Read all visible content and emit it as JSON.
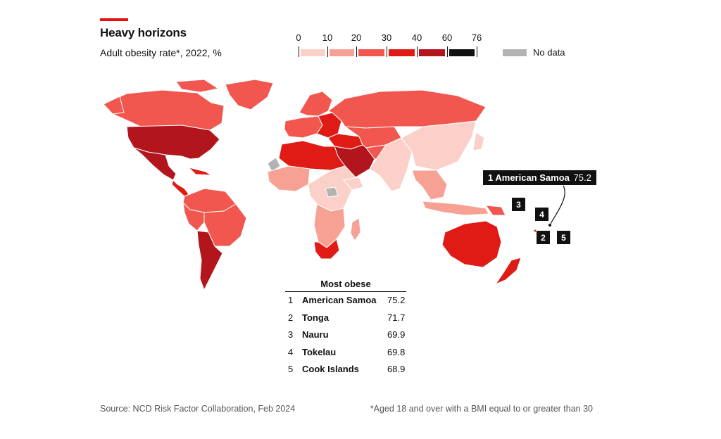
{
  "header": {
    "title": "Heavy horizons",
    "subtitle": "Adult obesity rate*, 2022, %"
  },
  "legend": {
    "ticks": [
      "0",
      "10",
      "20",
      "30",
      "40",
      "60",
      "76"
    ],
    "colors": [
      "#fbd0c8",
      "#f7a195",
      "#f1564f",
      "#e01b15",
      "#b2151c",
      "#111111"
    ],
    "no_data_label": "No data",
    "no_data_color": "#b3b3b3"
  },
  "map": {
    "ocean": "#ffffff",
    "border_color": "#ffffff"
  },
  "callout": {
    "rank": "1",
    "name": "American Samoa",
    "value": "75.2"
  },
  "rank_labels": [
    "3",
    "4",
    "2",
    "5"
  ],
  "table": {
    "title": "Most obese",
    "rows": [
      {
        "rank": "1",
        "name": "American Samoa",
        "value": "75.2"
      },
      {
        "rank": "2",
        "name": "Tonga",
        "value": "71.7"
      },
      {
        "rank": "3",
        "name": "Nauru",
        "value": "69.9"
      },
      {
        "rank": "4",
        "name": "Tokelau",
        "value": "69.8"
      },
      {
        "rank": "5",
        "name": "Cook Islands",
        "value": "68.9"
      }
    ]
  },
  "footer": {
    "source": "Source: NCD Risk Factor Collaboration, Feb 2024",
    "note": "*Aged 18 and over with a BMI equal to or greater than 30"
  }
}
